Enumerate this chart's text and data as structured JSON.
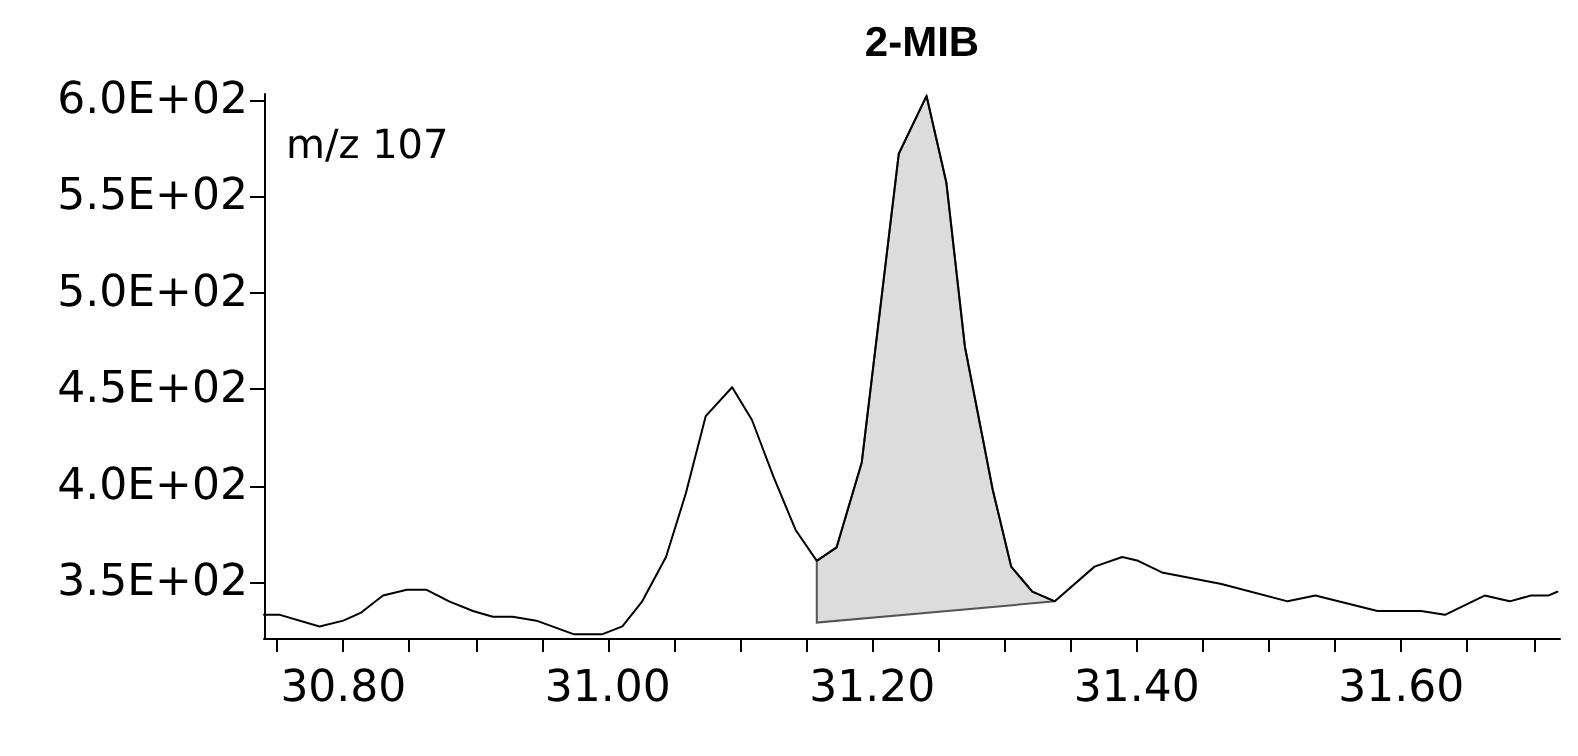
{
  "chart_data": {
    "type": "line",
    "title": "2-MIB",
    "annotations": [
      "m/z 107"
    ],
    "series": [
      {
        "color": "#000000",
        "x": [
          30.74,
          30.752,
          30.782,
          30.8,
          30.813,
          30.83,
          30.848,
          30.863,
          30.88,
          30.898,
          30.913,
          30.928,
          30.946,
          30.974,
          30.996,
          31.011,
          31.026,
          31.044,
          31.059,
          31.074,
          31.094,
          31.109,
          31.125,
          31.142,
          31.158,
          31.173,
          31.192,
          31.22,
          31.241,
          31.256,
          31.27,
          31.291,
          31.305,
          31.321,
          31.338,
          31.368,
          31.389,
          31.401,
          31.419,
          31.464,
          31.514,
          31.535,
          31.582,
          31.615,
          31.633,
          31.663,
          31.682,
          31.698,
          31.711,
          31.718
        ],
        "values": [
          333,
          333,
          327,
          330,
          334,
          343,
          346,
          346,
          340,
          335,
          332,
          332,
          330,
          323,
          323,
          327,
          340,
          363,
          396,
          436,
          451,
          434,
          405,
          377,
          361,
          368,
          412,
          572,
          602,
          557,
          472,
          398,
          358,
          345,
          340,
          358,
          363,
          361,
          355,
          349,
          340,
          343,
          335,
          335,
          333,
          343,
          340,
          343,
          343,
          345
        ]
      },
      {
        "type": "area",
        "color": "#dcdcdc",
        "x": [
          31.158,
          31.158,
          31.173,
          31.192,
          31.22,
          31.241,
          31.256,
          31.27,
          31.291,
          31.305,
          31.321,
          31.338
        ],
        "values": [
          329,
          361,
          368,
          412,
          572,
          602,
          557,
          472,
          398,
          358,
          345,
          340
        ]
      }
    ],
    "xlim": [
      30.74,
      31.72
    ],
    "ylim": [
      321,
      603
    ],
    "xticks": [
      {
        "value": 30.75,
        "label": null
      },
      {
        "value": 30.8,
        "label": "30.80"
      },
      {
        "value": 30.85,
        "label": null
      },
      {
        "value": 30.9,
        "label": null
      },
      {
        "value": 30.95,
        "label": null
      },
      {
        "value": 31.0,
        "label": "31.00"
      },
      {
        "value": 31.05,
        "label": null
      },
      {
        "value": 31.1,
        "label": null
      },
      {
        "value": 31.15,
        "label": null
      },
      {
        "value": 31.2,
        "label": "31.20"
      },
      {
        "value": 31.25,
        "label": null
      },
      {
        "value": 31.3,
        "label": null
      },
      {
        "value": 31.35,
        "label": null
      },
      {
        "value": 31.4,
        "label": "31.40"
      },
      {
        "value": 31.45,
        "label": null
      },
      {
        "value": 31.5,
        "label": null
      },
      {
        "value": 31.55,
        "label": null
      },
      {
        "value": 31.6,
        "label": "31.60"
      },
      {
        "value": 31.65,
        "label": null
      },
      {
        "value": 31.7,
        "label": null
      }
    ],
    "yticks": [
      {
        "value": 350,
        "label": "3.5E+02"
      },
      {
        "value": 400,
        "label": "4.0E+02"
      },
      {
        "value": 450,
        "label": "4.5E+02"
      },
      {
        "value": 500,
        "label": "5.0E+02"
      },
      {
        "value": 550,
        "label": "5.5E+02"
      },
      {
        "value": 600,
        "label": "6.0E+02"
      }
    ],
    "grid": false,
    "marker": "none",
    "line_style": "solid"
  }
}
